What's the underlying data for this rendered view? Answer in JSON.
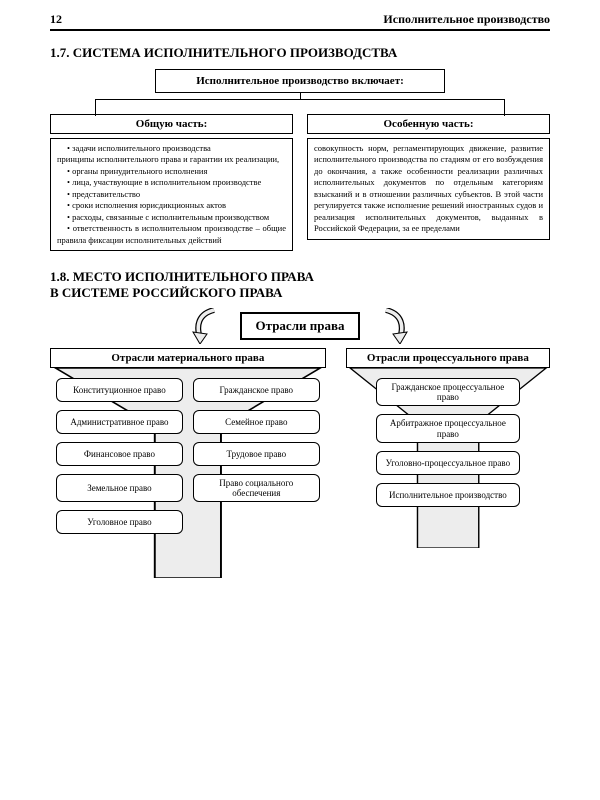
{
  "page_number": "12",
  "running_head": "Исполнительное производство",
  "section17": {
    "heading": "1.7. СИСТЕМА ИСПОЛНИТЕЛЬНОГО ПРОИЗВОДСТВА",
    "intro": "Исполнительное производство включает:",
    "general": {
      "title": "Общую часть:",
      "items": [
        "задачи исполнительного производства",
        "принципы исполнительного права и гарантии их реализации,",
        "органы принудительного исполнения",
        "лица, участвующие в исполнительном производстве",
        "представительство",
        "сроки исполнения юрисдикционных актов",
        "расходы, связанные с исполнительным производством",
        "ответственность в исполнительном производстве – общие правила фиксации исполнительных действий"
      ]
    },
    "special": {
      "title": "Особенную часть:",
      "body": "совокупность норм, регламентирующих движение, развитие исполнительного производства по стадиям от его возбуждения до окончания, а также особенности реализации различных исполнительных документов по отдельным категориям взысканий и в отношении различных субъектов. В этой части регулируется также исполнение решений иностранных судов и реализация исполнительных документов, выданных в Российской Федерации, за ее пределами"
    }
  },
  "section18": {
    "heading_l1": "1.8. МЕСТО ИСПОЛНИТЕЛЬНОГО ПРАВА",
    "heading_l2": "В СИСТЕМЕ РОССИЙСКОГО ПРАВА",
    "root": "Отрасли права",
    "material": {
      "title": "Отрасли материального права",
      "items": [
        "Конституционное право",
        "Гражданское право",
        "Административное право",
        "Семейное право",
        "Финансовое право",
        "Трудовое право",
        "Земельное право",
        "Право социального обеспечения",
        "Уголовное право"
      ]
    },
    "procedural": {
      "title": "Отрасли процессуального права",
      "items": [
        "Гражданское процессуальное право",
        "Арбитражное процессуальное право",
        "Уголовно-процессуальное право",
        "Исполнительное производство"
      ]
    }
  },
  "style": {
    "fill_gray": "#ededed",
    "stroke": "#000000",
    "stroke_thin": 1.2,
    "stroke_thick": 1.8
  }
}
